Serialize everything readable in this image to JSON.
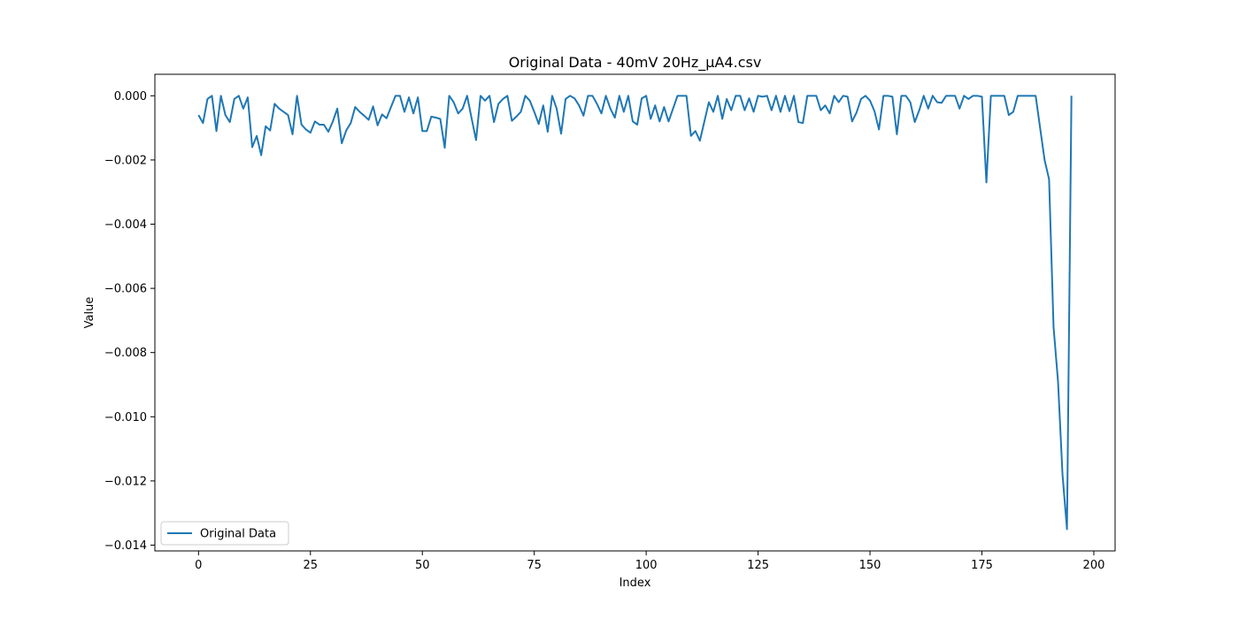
{
  "chart_data": {
    "type": "line",
    "title": "Original Data - 40mV 20Hz_μA4.csv",
    "xlabel": "Index",
    "ylabel": "Value",
    "xlim": [
      -9.75,
      204.75
    ],
    "ylim": [
      -0.01418,
      0.00067
    ],
    "xticks": [
      0,
      25,
      50,
      75,
      100,
      125,
      150,
      175,
      200
    ],
    "xtick_labels": [
      "0",
      "25",
      "50",
      "75",
      "100",
      "125",
      "150",
      "175",
      "200"
    ],
    "yticks": [
      0.0,
      -0.002,
      -0.004,
      -0.006,
      -0.008,
      -0.01,
      -0.012,
      -0.014
    ],
    "ytick_labels": [
      "0.000",
      "−0.002",
      "−0.004",
      "−0.006",
      "−0.008",
      "−0.010",
      "−0.012",
      "−0.014"
    ],
    "grid": false,
    "legend_position": "lower-left",
    "series": [
      {
        "name": "Original Data",
        "color": "#1f77b4",
        "values": [
          -0.0006,
          -0.00085,
          -0.0001,
          0.0,
          -0.0011,
          0.0,
          -0.0006,
          -0.00082,
          -0.0001,
          0.0,
          -0.0004,
          -5e-05,
          -0.0016,
          -0.00125,
          -0.00185,
          -0.00095,
          -0.00108,
          -0.00025,
          -0.0004,
          -0.0005,
          -0.0006,
          -0.0012,
          0.0,
          -0.0009,
          -0.00105,
          -0.00115,
          -0.0008,
          -0.0009,
          -0.0009,
          -0.00112,
          -0.0008,
          -0.0004,
          -0.00148,
          -0.00108,
          -0.00085,
          -0.00035,
          -0.0005,
          -0.00062,
          -0.00075,
          -0.00033,
          -0.00092,
          -0.00058,
          -0.0007,
          -0.00035,
          0.0,
          0.0,
          -0.0005,
          -5e-05,
          -0.00055,
          -5e-05,
          -0.0011,
          -0.0011,
          -0.00065,
          -0.00068,
          -0.00072,
          -0.00162,
          0.0,
          -0.0002,
          -0.00055,
          -0.0004,
          0.0,
          -0.0007,
          -0.00138,
          0.0,
          -0.00015,
          0.0,
          -0.00082,
          -0.00025,
          -0.0001,
          0.0,
          -0.00078,
          -0.00065,
          -0.0005,
          0.0,
          -0.00015,
          -0.0005,
          -0.00088,
          -0.0003,
          -0.00112,
          0.0,
          -0.0004,
          -0.00118,
          -0.0001,
          0.0,
          -8e-05,
          -0.0003,
          -0.00062,
          0.0,
          0.0,
          -0.00025,
          -0.00055,
          0.0,
          -0.0004,
          -0.00068,
          0.0,
          -0.0005,
          0.0,
          -0.0008,
          -0.0009,
          -8e-05,
          0.0,
          -0.00072,
          -0.0003,
          -0.0008,
          -0.00035,
          -0.0008,
          -0.0004,
          0.0,
          0.0,
          0.0,
          -0.00125,
          -0.0011,
          -0.0014,
          -0.0008,
          -0.0002,
          -0.0005,
          0.0,
          -0.00072,
          -0.0001,
          -0.00045,
          0.0,
          0.0,
          -0.00045,
          -8e-05,
          -0.0005,
          0.0,
          -3e-05,
          0.0,
          -0.00045,
          0.0,
          -0.0005,
          0.0,
          -0.00048,
          0.0,
          -0.00082,
          -0.00085,
          0.0,
          0.0,
          0.0,
          -0.00045,
          -0.0003,
          -0.00055,
          0.0,
          -0.0002,
          0.0,
          -3e-05,
          -0.0008,
          -0.00052,
          -0.0001,
          0.0,
          -0.00015,
          -0.00048,
          -0.00105,
          0.0,
          0.0,
          -3e-05,
          -0.0012,
          0.0,
          0.0,
          -0.0002,
          -0.00082,
          -0.00045,
          0.0,
          -0.0004,
          0.0,
          -0.0002,
          -0.00022,
          0.0,
          0.0,
          0.0,
          -0.0004,
          0.0,
          -0.0001,
          0.0,
          0.0,
          -3e-05,
          -0.0027,
          0.0,
          0.0,
          0.0,
          0.0,
          -0.0006,
          -0.0005,
          0.0,
          0.0,
          0.0,
          0.0,
          0.0,
          -0.001,
          -0.002,
          -0.0026,
          -0.0072,
          -0.0089,
          -0.0118,
          -0.0135,
          0.0
        ]
      }
    ]
  }
}
